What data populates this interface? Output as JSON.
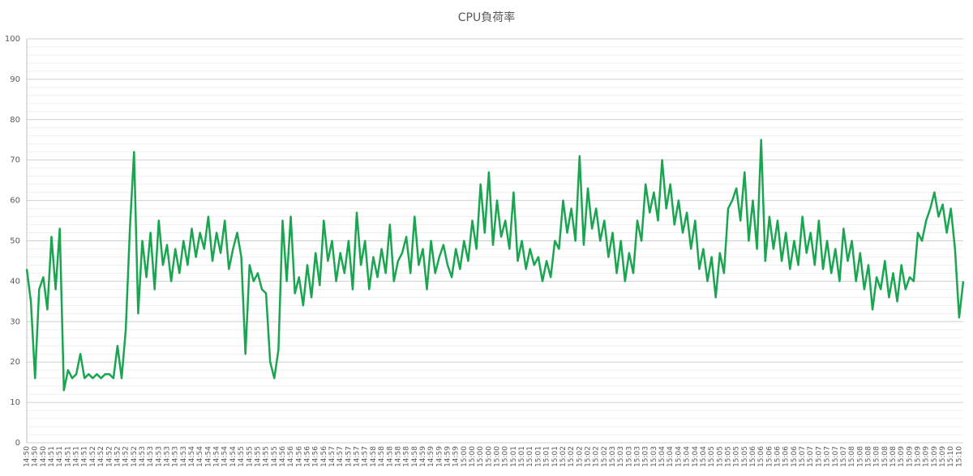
{
  "chart_data": {
    "type": "line",
    "title": "CPU負荷率",
    "categories": [
      "14:50",
      null,
      "14:50",
      null,
      "14:50",
      null,
      "14:51",
      null,
      "14:51",
      null,
      "14:51",
      null,
      "14:51",
      null,
      "14:51",
      null,
      "14:52",
      null,
      "14:52",
      null,
      "14:52",
      null,
      "14:52",
      null,
      "14:52",
      null,
      "14:52",
      null,
      "14:53",
      null,
      "14:53",
      null,
      "14:53",
      null,
      "14:53",
      null,
      "14:53",
      null,
      "14:53",
      null,
      "14:54",
      null,
      "14:54",
      null,
      "14:54",
      null,
      "14:54",
      null,
      "14:54",
      null,
      "14:54",
      null,
      "14:55",
      null,
      "14:55",
      null,
      "14:55",
      null,
      "14:55",
      null,
      "14:55",
      null,
      "14:56",
      null,
      "14:56",
      null,
      "14:56",
      null,
      "14:56",
      null,
      "14:56",
      null,
      "14:56",
      null,
      "14:57",
      null,
      "14:57",
      null,
      "14:57",
      null,
      "14:57",
      null,
      "14:57",
      null,
      "14:58",
      null,
      "14:58",
      null,
      "14:58",
      null,
      "14:58",
      null,
      "14:58",
      null,
      "14:58",
      null,
      "14:59",
      null,
      "14:59",
      null,
      "14:59",
      null,
      "14:59",
      null,
      "14:59",
      null,
      "15:00",
      null,
      "15:00",
      null,
      "15:00",
      null,
      "15:00",
      null,
      "15:00",
      null,
      "15:00",
      null,
      "15:01",
      null,
      "15:01",
      null,
      "15:01",
      null,
      "15:01",
      null,
      "15:01",
      null,
      "15:01",
      null,
      "15:02",
      null,
      "15:02",
      null,
      "15:02",
      null,
      "15:02",
      null,
      "15:02",
      null,
      "15:02",
      null,
      "15:03",
      null,
      "15:03",
      null,
      "15:03",
      null,
      "15:03",
      null,
      "15:03",
      null,
      "15:03",
      null,
      "15:04",
      null,
      "15:04",
      null,
      "15:04",
      null,
      "15:04",
      null,
      "15:04",
      null,
      "15:04",
      null,
      "15:05",
      null,
      "15:05",
      null,
      "15:05",
      null,
      "15:05",
      null,
      "15:05",
      null,
      "15:06",
      null,
      "15:06",
      null,
      "15:06",
      null,
      "15:06",
      null,
      "15:06",
      null,
      "15:06",
      null,
      "15:07",
      null,
      "15:07",
      null,
      "15:07",
      null,
      "15:07",
      null,
      "15:07",
      null,
      "15:07",
      null,
      "15:08",
      null,
      "15:08",
      null,
      "15:08",
      null,
      "15:08",
      null,
      "15:08",
      null,
      "15:08",
      null,
      "15:09",
      null,
      "15:09",
      null,
      "15:09",
      null,
      "15:09",
      null,
      "15:09",
      null,
      "15:09",
      null,
      "15:10",
      null,
      "15:10",
      null
    ],
    "values": [
      43,
      35,
      16,
      38,
      41,
      33,
      51,
      38,
      53,
      13,
      18,
      16,
      17,
      22,
      16,
      17,
      16,
      17,
      16,
      17,
      17,
      16,
      24,
      16,
      28,
      53,
      72,
      32,
      50,
      41,
      52,
      38,
      55,
      44,
      49,
      40,
      48,
      42,
      50,
      44,
      53,
      46,
      52,
      48,
      56,
      45,
      52,
      47,
      55,
      43,
      48,
      52,
      46,
      22,
      44,
      40,
      42,
      38,
      37,
      20,
      16,
      23,
      55,
      40,
      56,
      37,
      41,
      34,
      44,
      36,
      47,
      39,
      55,
      45,
      50,
      40,
      47,
      42,
      50,
      38,
      57,
      44,
      50,
      38,
      46,
      41,
      48,
      42,
      54,
      40,
      45,
      47,
      51,
      42,
      56,
      44,
      48,
      38,
      50,
      42,
      46,
      49,
      44,
      41,
      48,
      43,
      50,
      45,
      55,
      48,
      64,
      52,
      67,
      49,
      60,
      51,
      55,
      48,
      62,
      45,
      50,
      43,
      48,
      44,
      46,
      40,
      45,
      41,
      50,
      48,
      60,
      52,
      58,
      50,
      71,
      49,
      63,
      53,
      58,
      50,
      55,
      46,
      52,
      42,
      50,
      40,
      47,
      42,
      55,
      50,
      64,
      57,
      62,
      55,
      70,
      58,
      64,
      54,
      60,
      52,
      57,
      48,
      55,
      43,
      48,
      40,
      46,
      36,
      47,
      42,
      58,
      60,
      63,
      55,
      67,
      50,
      60,
      48,
      75,
      45,
      56,
      48,
      55,
      45,
      52,
      43,
      50,
      44,
      56,
      47,
      52,
      44,
      55,
      43,
      50,
      42,
      48,
      40,
      53,
      45,
      50,
      40,
      47,
      38,
      44,
      33,
      41,
      38,
      45,
      36,
      42,
      35,
      44,
      38,
      41,
      40,
      52,
      50,
      55,
      58,
      62,
      56,
      59,
      52,
      58,
      48,
      31,
      40
    ],
    "color": "#1aa550",
    "ylim": [
      0,
      100
    ],
    "yticks": [
      0,
      10,
      20,
      30,
      40,
      50,
      60,
      70,
      80,
      90,
      100
    ],
    "grid": true
  }
}
